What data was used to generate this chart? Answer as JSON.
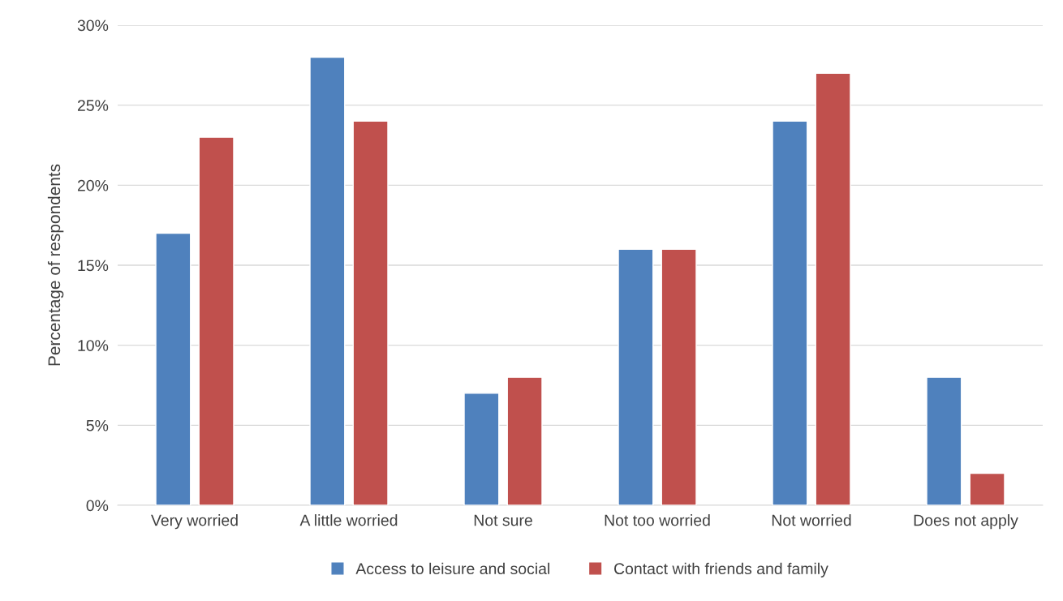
{
  "chart_data": {
    "type": "bar",
    "ylabel": "Percentage of respondents",
    "categories": [
      "Very worried",
      "A little worried",
      "Not sure",
      "Not too worried",
      "Not worried",
      "Does not apply"
    ],
    "series": [
      {
        "name": "Access to leisure and social",
        "color": "#4f81bd",
        "values": [
          17,
          28,
          7,
          16,
          24,
          8
        ]
      },
      {
        "name": "Contact with friends and family",
        "color": "#c0504d",
        "values": [
          23,
          24,
          8,
          16,
          27,
          2
        ]
      }
    ],
    "ylim": [
      0,
      30
    ],
    "yticks": [
      {
        "value": 0,
        "label": "0%"
      },
      {
        "value": 5,
        "label": "5%"
      },
      {
        "value": 10,
        "label": "10%"
      },
      {
        "value": 15,
        "label": "15%"
      },
      {
        "value": 20,
        "label": "20%"
      },
      {
        "value": 25,
        "label": "25%"
      },
      {
        "value": 30,
        "label": "30%"
      }
    ],
    "grid": "y",
    "legend": "bottom"
  }
}
